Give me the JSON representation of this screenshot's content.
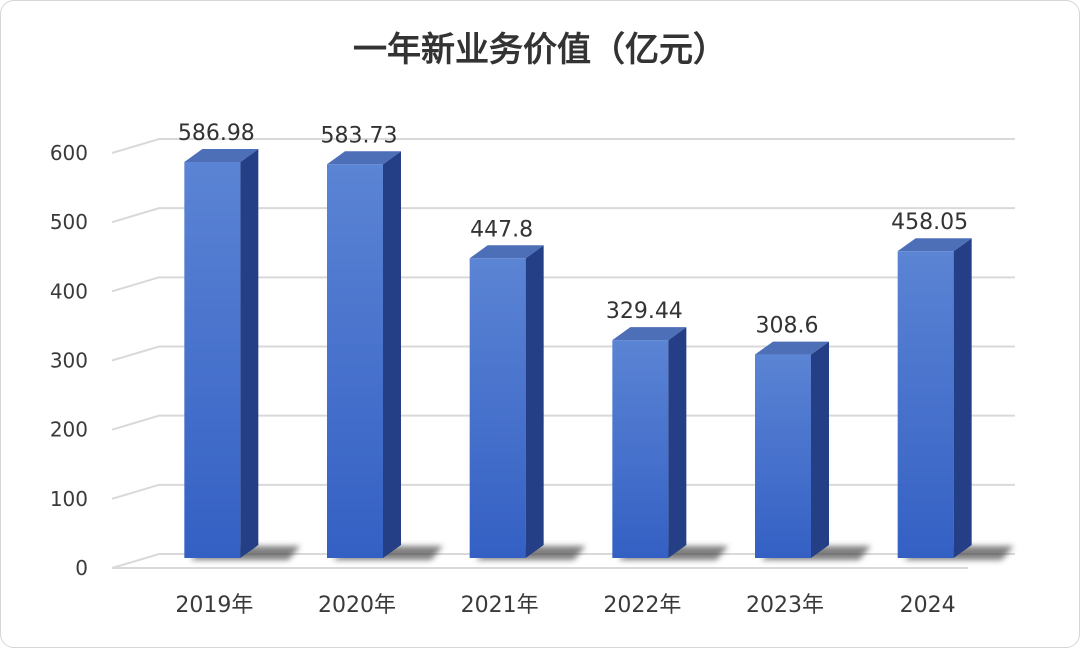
{
  "chart_data": {
    "type": "bar",
    "title": "一年新业务价值（亿元）",
    "categories": [
      "2019年",
      "2020年",
      "2021年",
      "2022年",
      "2023年",
      "2024"
    ],
    "values": [
      586.98,
      583.73,
      447.8,
      329.44,
      308.6,
      458.05
    ],
    "data_labels": [
      "586.98",
      "583.73",
      "447.8",
      "329.44",
      "308.6",
      "458.05"
    ],
    "yticks": [
      0,
      100,
      200,
      300,
      400,
      500,
      600
    ],
    "ylim": [
      0,
      600
    ],
    "xlabel": "",
    "ylabel": "",
    "grid": true,
    "legend": "none",
    "colors": {
      "bar_front_top": "#5b84d4",
      "bar_front_bottom": "#3460c4",
      "bar_side": "#243f86",
      "bar_top": "#4d6fb8",
      "grid": "#d9d9d9",
      "shadow": "#555555"
    }
  }
}
